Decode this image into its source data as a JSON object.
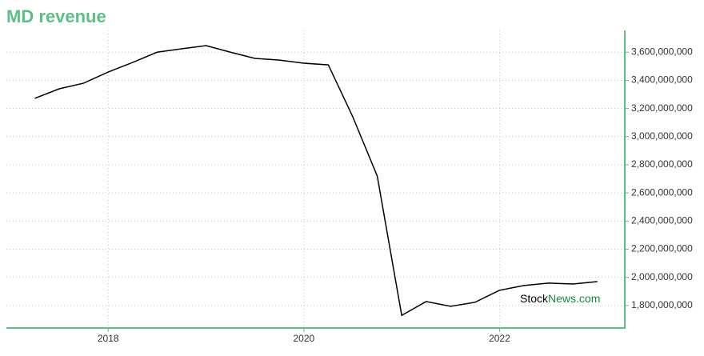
{
  "chart_data": {
    "type": "line",
    "title": "MD revenue",
    "watermark": {
      "first": "Stock",
      "second": "News.com"
    },
    "x": [
      2017.25,
      2017.5,
      2017.75,
      2018,
      2018.25,
      2018.5,
      2018.75,
      2019,
      2019.25,
      2019.5,
      2019.75,
      2020,
      2020.25,
      2020.5,
      2020.75,
      2021,
      2021.25,
      2021.5,
      2021.75,
      2022,
      2022.25,
      2022.5,
      2022.75,
      2023
    ],
    "series": [
      {
        "color": "#000000",
        "values": [
          3272000000,
          3340000000,
          3380000000,
          3459000000,
          3527000000,
          3600000000,
          3624000000,
          3647000000,
          3600000000,
          3556000000,
          3544000000,
          3522000000,
          3510000000,
          3141000000,
          2720000000,
          1730000000,
          1828000000,
          1794000000,
          1823000000,
          1908000000,
          1942000000,
          1959000000,
          1953000000,
          1970000000
        ]
      }
    ],
    "xlim": [
      2016.96,
      2023.28
    ],
    "xticks": [
      2018,
      2020,
      2022
    ],
    "ylim": [
      1640000000,
      3755000000
    ],
    "yticks": [
      {
        "value": 1800000000,
        "label": "1,800,000,000"
      },
      {
        "value": 2000000000,
        "label": "2,000,000,000"
      },
      {
        "value": 2200000000,
        "label": "2,200,000,000"
      },
      {
        "value": 2400000000,
        "label": "2,400,000,000"
      },
      {
        "value": 2600000000,
        "label": "2,600,000,000"
      },
      {
        "value": 2800000000,
        "label": "2,800,000,000"
      },
      {
        "value": 3000000000,
        "label": "3,000,000,000"
      },
      {
        "value": 3200000000,
        "label": "3,200,000,000"
      },
      {
        "value": 3400000000,
        "label": "3,400,000,000"
      },
      {
        "value": 3600000000,
        "label": "3,600,000,000"
      }
    ],
    "grid": true,
    "axis_color": "#5cbf85"
  }
}
